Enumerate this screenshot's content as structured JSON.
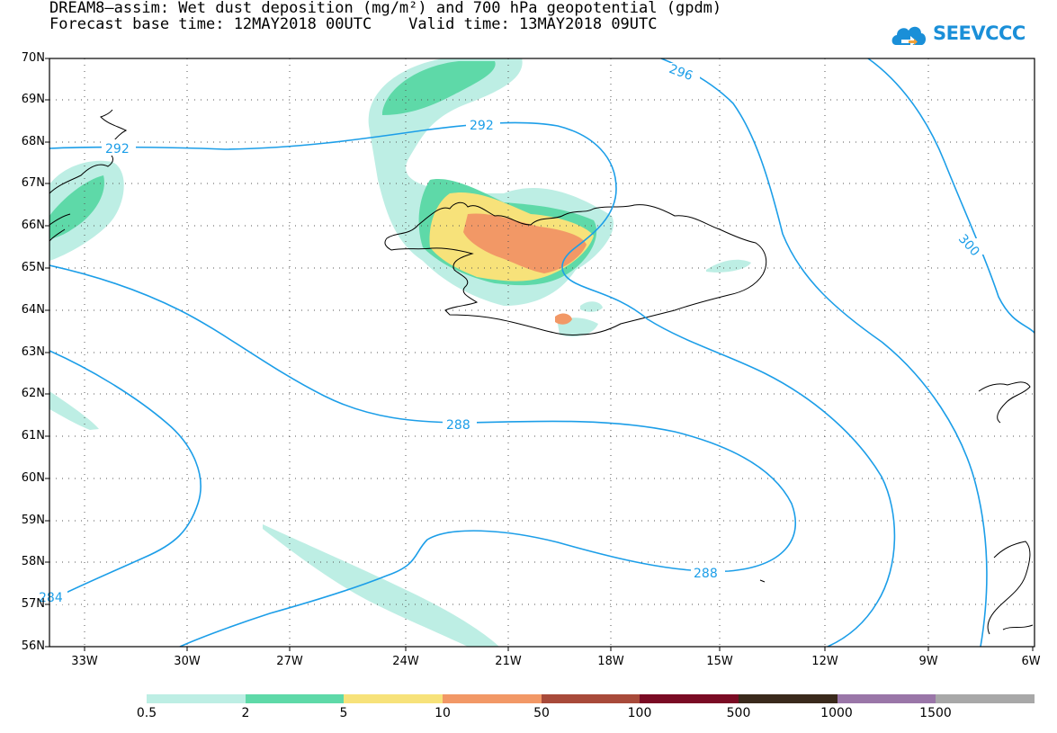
{
  "header": {
    "title_line1": "DREAM8–assim: Wet dust deposition (mg/m²) and 700 hPa geopotential (gpdm)",
    "title_line2": "Forecast base time: 12MAY2018 00UTC    Valid time: 13MAY2018 09UTC"
  },
  "logo": {
    "text": "SEEVCCC",
    "color": "#1a8fd8"
  },
  "map": {
    "lat_labels": [
      "70N",
      "69N",
      "68N",
      "67N",
      "66N",
      "65N",
      "64N",
      "63N",
      "62N",
      "61N",
      "60N",
      "59N",
      "58N",
      "57N",
      "56N"
    ],
    "lon_labels": [
      "33W",
      "30W",
      "27W",
      "24W",
      "21W",
      "18W",
      "15W",
      "12W",
      "9W",
      "6W"
    ],
    "contour_labels": [
      "296",
      "292",
      "292",
      "300",
      "288",
      "288",
      "284"
    ],
    "contour_color": "#1c9ee8",
    "coast_color": "#000000"
  },
  "legend": {
    "labels": [
      "0.5",
      "2",
      "5",
      "10",
      "50",
      "100",
      "500",
      "1000",
      "1500"
    ],
    "colors": [
      "#bdeee4",
      "#5ed9a8",
      "#f7e27a",
      "#f29866",
      "#a84a3a",
      "#7a0b24",
      "#3a2a1c",
      "#9a76a8",
      "#a8a8a8"
    ]
  }
}
